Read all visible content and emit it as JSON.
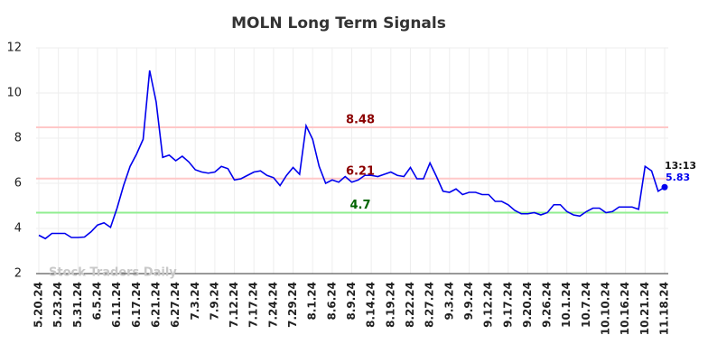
{
  "chart_data": {
    "type": "line",
    "title": "MOLN Long Term Signals",
    "categories": [
      "5.20.24",
      null,
      null,
      "5.23.24",
      null,
      null,
      "5.31.24",
      null,
      null,
      "6.5.24",
      null,
      null,
      "6.11.24",
      null,
      null,
      "6.17.24",
      null,
      null,
      "6.21.24",
      null,
      null,
      "6.27.24",
      null,
      null,
      "7.3.24",
      null,
      null,
      "7.9.24",
      null,
      null,
      "7.12.24",
      null,
      null,
      "7.17.24",
      null,
      null,
      "7.24.24",
      null,
      null,
      "7.29.24",
      null,
      null,
      "8.1.24",
      null,
      null,
      "8.6.24",
      null,
      null,
      "8.9.24",
      null,
      null,
      "8.14.24",
      null,
      null,
      "8.19.24",
      null,
      null,
      "8.22.24",
      null,
      null,
      "8.27.24",
      null,
      null,
      "9.3.24",
      null,
      null,
      "9.9.24",
      null,
      null,
      "9.12.24",
      null,
      null,
      "9.17.24",
      null,
      null,
      "9.20.24",
      null,
      null,
      "9.26.24",
      null,
      null,
      "10.1.24",
      null,
      null,
      "10.7.24",
      null,
      null,
      "10.10.24",
      null,
      null,
      "10.16.24",
      null,
      null,
      "10.21.24",
      null,
      null,
      "11.18.24"
    ],
    "values": [
      3.7,
      3.55,
      3.78,
      3.78,
      3.78,
      3.6,
      3.6,
      3.62,
      3.85,
      4.15,
      4.25,
      4.05,
      4.9,
      5.9,
      6.75,
      7.3,
      7.95,
      11.0,
      9.6,
      7.15,
      7.25,
      7.0,
      7.2,
      6.95,
      6.6,
      6.5,
      6.45,
      6.5,
      6.75,
      6.65,
      6.15,
      6.2,
      6.35,
      6.5,
      6.55,
      6.35,
      6.25,
      5.9,
      6.35,
      6.7,
      6.4,
      8.55,
      7.95,
      6.75,
      6.0,
      6.15,
      6.05,
      6.3,
      6.05,
      6.15,
      6.35,
      6.35,
      6.3,
      6.4,
      6.5,
      6.35,
      6.3,
      6.7,
      6.2,
      6.2,
      6.9,
      6.3,
      5.65,
      5.6,
      5.75,
      5.5,
      5.6,
      5.6,
      5.5,
      5.5,
      5.2,
      5.2,
      5.05,
      4.8,
      4.65,
      4.65,
      4.7,
      4.6,
      4.7,
      5.05,
      5.05,
      4.75,
      4.6,
      4.55,
      4.75,
      4.9,
      4.9,
      4.7,
      4.75,
      4.95,
      4.95,
      4.95,
      4.85,
      6.75,
      6.55,
      5.65,
      5.83
    ],
    "color": "#0000ee",
    "ylim": [
      2,
      12
    ],
    "yticks": [
      2,
      4,
      6,
      8,
      10,
      12
    ],
    "grid": true,
    "hlines": [
      {
        "value": 8.48,
        "color": "#ffc8c8",
        "label_color": "#8b0000"
      },
      {
        "value": 6.21,
        "color": "#ffc8c8",
        "label_color": "#8b0000"
      },
      {
        "value": 4.7,
        "color": "#90ee90",
        "label_color": "#006400"
      }
    ],
    "last_time": "13:13",
    "watermark": "Stock Traders Daily"
  }
}
